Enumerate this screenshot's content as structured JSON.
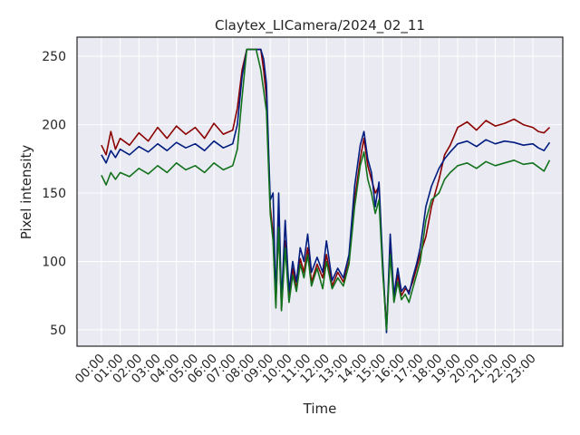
{
  "chart_data": {
    "type": "line",
    "title": "Claytex_LICamera/2024_02_11",
    "xlabel": "Time",
    "ylabel": "Pixel intensity",
    "x_unit": "hours",
    "xlim": [
      -1.3,
      24.6
    ],
    "ylim": [
      38,
      264
    ],
    "yticks": [
      50,
      100,
      150,
      200,
      250
    ],
    "xticks": [
      {
        "pos": 0,
        "label": "00:00"
      },
      {
        "pos": 1,
        "label": "01:00"
      },
      {
        "pos": 2,
        "label": "02:00"
      },
      {
        "pos": 3,
        "label": "03:00"
      },
      {
        "pos": 4,
        "label": "04:00"
      },
      {
        "pos": 5,
        "label": "05:00"
      },
      {
        "pos": 6,
        "label": "06:00"
      },
      {
        "pos": 7,
        "label": "07:00"
      },
      {
        "pos": 8,
        "label": "08:00"
      },
      {
        "pos": 9,
        "label": "09:00"
      },
      {
        "pos": 10,
        "label": "10:00"
      },
      {
        "pos": 11,
        "label": "11:00"
      },
      {
        "pos": 12,
        "label": "12:00"
      },
      {
        "pos": 13,
        "label": "13:00"
      },
      {
        "pos": 14,
        "label": "14:00"
      },
      {
        "pos": 15,
        "label": "15:00"
      },
      {
        "pos": 16,
        "label": "16:00"
      },
      {
        "pos": 17,
        "label": "17:00"
      },
      {
        "pos": 18,
        "label": "18:00"
      },
      {
        "pos": 19,
        "label": "19:00"
      },
      {
        "pos": 20,
        "label": "20:00"
      },
      {
        "pos": 21,
        "label": "21:00"
      },
      {
        "pos": 22,
        "label": "22:00"
      },
      {
        "pos": 23,
        "label": "23:00"
      }
    ],
    "grid": true,
    "legend": "none",
    "series": [
      {
        "color": "#8b0000",
        "x": [
          0,
          0.25,
          0.5,
          0.75,
          1,
          1.5,
          2,
          2.5,
          3,
          3.5,
          4,
          4.5,
          5,
          5.5,
          6,
          6.5,
          7,
          7.25,
          7.5,
          7.75,
          8,
          8.25,
          8.5,
          8.65,
          8.8,
          9.0,
          9.15,
          9.3,
          9.45,
          9.6,
          9.8,
          10.0,
          10.2,
          10.4,
          10.6,
          10.8,
          11.0,
          11.2,
          11.5,
          11.8,
          12.0,
          12.3,
          12.6,
          12.9,
          13.2,
          13.5,
          13.8,
          14.0,
          14.2,
          14.4,
          14.6,
          14.8,
          15.0,
          15.2,
          15.4,
          15.6,
          15.8,
          16.0,
          16.2,
          16.4,
          16.6,
          16.8,
          17.0,
          17.3,
          17.6,
          18.0,
          18.3,
          18.6,
          19.0,
          19.5,
          20.0,
          20.5,
          21.0,
          21.5,
          22.0,
          22.5,
          23.0,
          23.3,
          23.6,
          23.9
        ],
        "y": [
          185,
          178,
          195,
          182,
          190,
          185,
          194,
          188,
          198,
          190,
          199,
          193,
          198,
          190,
          201,
          193,
          196,
          212,
          240,
          255,
          255,
          255,
          255,
          240,
          220,
          140,
          120,
          68,
          130,
          65,
          115,
          72,
          95,
          80,
          102,
          92,
          110,
          85,
          98,
          88,
          105,
          82,
          92,
          85,
          100,
          145,
          175,
          190,
          170,
          160,
          150,
          155,
          95,
          52,
          110,
          72,
          90,
          75,
          80,
          78,
          85,
          95,
          105,
          118,
          140,
          160,
          178,
          185,
          198,
          202,
          196,
          203,
          199,
          201,
          204,
          200,
          198,
          195,
          194,
          198
        ]
      },
      {
        "color": "#001c7f",
        "x": [
          0,
          0.25,
          0.5,
          0.75,
          1,
          1.5,
          2,
          2.5,
          3,
          3.5,
          4,
          4.5,
          5,
          5.5,
          6,
          6.5,
          7,
          7.25,
          7.5,
          7.75,
          8,
          8.25,
          8.5,
          8.65,
          8.8,
          9.0,
          9.15,
          9.3,
          9.45,
          9.6,
          9.8,
          10.0,
          10.2,
          10.4,
          10.6,
          10.8,
          11.0,
          11.2,
          11.5,
          11.8,
          12.0,
          12.3,
          12.6,
          12.9,
          13.2,
          13.5,
          13.8,
          14.0,
          14.2,
          14.4,
          14.6,
          14.8,
          15.0,
          15.2,
          15.4,
          15.6,
          15.8,
          16.0,
          16.2,
          16.4,
          16.6,
          16.8,
          17.0,
          17.3,
          17.6,
          18.0,
          18.3,
          18.6,
          19.0,
          19.5,
          20.0,
          20.5,
          21.0,
          21.5,
          22.0,
          22.5,
          23.0,
          23.3,
          23.6,
          23.9
        ],
        "y": [
          178,
          172,
          181,
          176,
          182,
          178,
          184,
          180,
          186,
          181,
          187,
          183,
          186,
          181,
          188,
          183,
          186,
          200,
          235,
          255,
          255,
          255,
          255,
          248,
          230,
          145,
          150,
          72,
          150,
          70,
          130,
          78,
          100,
          85,
          110,
          100,
          120,
          92,
          103,
          92,
          115,
          86,
          95,
          88,
          105,
          155,
          185,
          195,
          175,
          165,
          140,
          158,
          100,
          48,
          120,
          75,
          95,
          78,
          82,
          76,
          88,
          98,
          110,
          140,
          155,
          168,
          175,
          180,
          186,
          188,
          184,
          189,
          186,
          188,
          187,
          185,
          186,
          183,
          181,
          187
        ]
      },
      {
        "color": "#12711c",
        "x": [
          0,
          0.25,
          0.5,
          0.75,
          1,
          1.5,
          2,
          2.5,
          3,
          3.5,
          4,
          4.5,
          5,
          5.5,
          6,
          6.5,
          7,
          7.25,
          7.5,
          7.75,
          8,
          8.25,
          8.5,
          8.65,
          8.8,
          9.0,
          9.15,
          9.3,
          9.45,
          9.6,
          9.8,
          10.0,
          10.2,
          10.4,
          10.6,
          10.8,
          11.0,
          11.2,
          11.5,
          11.8,
          12.0,
          12.3,
          12.6,
          12.9,
          13.2,
          13.5,
          13.8,
          14.0,
          14.2,
          14.4,
          14.6,
          14.8,
          15.0,
          15.2,
          15.4,
          15.6,
          15.8,
          16.0,
          16.2,
          16.4,
          16.6,
          16.8,
          17.0,
          17.3,
          17.6,
          18.0,
          18.3,
          18.6,
          19.0,
          19.5,
          20.0,
          20.5,
          21.0,
          21.5,
          22.0,
          22.5,
          23.0,
          23.3,
          23.6,
          23.9
        ],
        "y": [
          163,
          156,
          165,
          160,
          165,
          162,
          168,
          164,
          170,
          165,
          172,
          167,
          170,
          165,
          172,
          167,
          170,
          182,
          220,
          255,
          255,
          255,
          240,
          225,
          210,
          135,
          115,
          66,
          125,
          64,
          110,
          70,
          90,
          78,
          98,
          88,
          105,
          82,
          95,
          80,
          100,
          80,
          88,
          82,
          98,
          140,
          170,
          180,
          160,
          150,
          135,
          145,
          92,
          50,
          105,
          70,
          85,
          72,
          76,
          70,
          80,
          90,
          100,
          130,
          145,
          150,
          160,
          165,
          170,
          172,
          168,
          173,
          170,
          172,
          174,
          171,
          172,
          169,
          166,
          174
        ]
      }
    ]
  }
}
